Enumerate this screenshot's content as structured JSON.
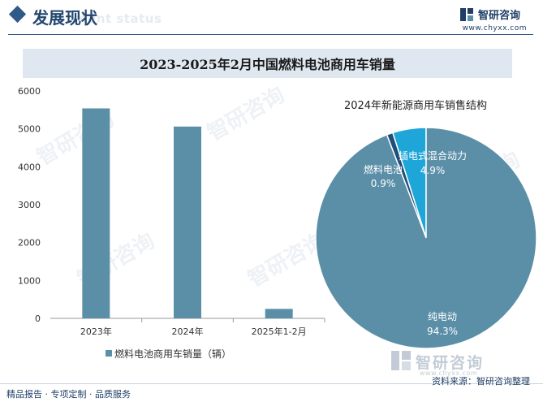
{
  "header": {
    "title": "发展现状",
    "subtitle_en": "ment status"
  },
  "brand": {
    "name": "智研咨询",
    "url": "www.chyxx.com",
    "bottom_name": "智研咨询",
    "bottom_en": "www.chyxx.com"
  },
  "watermark_text": "智研咨询",
  "footer": {
    "left": "精品报告 · 专项定制 · 品质服务",
    "source": "资料来源：智研咨询整理"
  },
  "colors": {
    "bar": "#5b8fa8",
    "pie_pure_ev": "#5b8fa8",
    "pie_phev": "#1ea6d9",
    "pie_fuel_cell": "#1f4e79",
    "header_accent": "#2e5a87",
    "title_band": "#dfe8f0"
  },
  "chart_data": [
    {
      "type": "bar",
      "title": "2023-2025年2月中国燃料电池商用车销量",
      "categories": [
        "2023年",
        "2024年",
        "2025年1-2月"
      ],
      "series": [
        {
          "name": "燃料电池商用车销量（辆）",
          "values": [
            5540,
            5060,
            250
          ]
        }
      ],
      "ylim": [
        0,
        6000
      ],
      "yticks": [
        "0",
        "1000",
        "2000",
        "3000",
        "4000",
        "5000",
        "6000"
      ],
      "legend": "bottom",
      "grid": false
    },
    {
      "type": "pie",
      "title": "2024年新能源商用车销售结构",
      "slices": [
        {
          "label": "插电式混合动力",
          "value": 4.9,
          "pct_label": "4.9%"
        },
        {
          "label": "燃料电池",
          "value": 0.9,
          "pct_label": "0.9%"
        },
        {
          "label": "纯电动",
          "value": 94.3,
          "pct_label": "94.3%"
        }
      ]
    }
  ]
}
